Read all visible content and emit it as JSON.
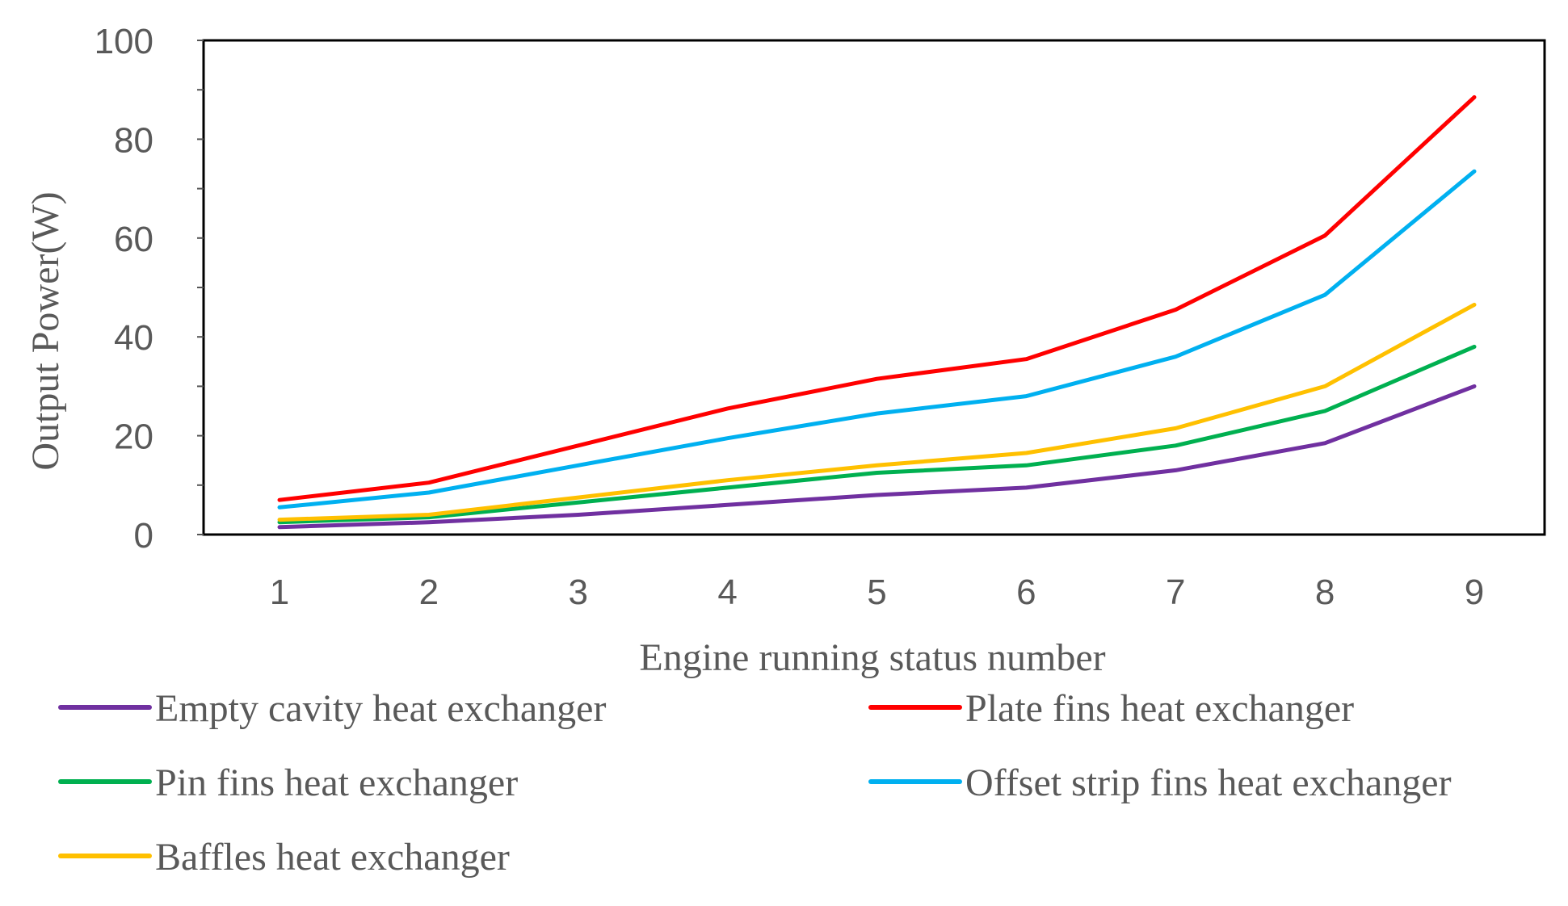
{
  "chart_data": {
    "type": "line",
    "title": "",
    "xlabel": "Engine running status number",
    "ylabel": "Output Power(W)",
    "x": [
      1,
      2,
      3,
      4,
      5,
      6,
      7,
      8,
      9
    ],
    "categories": [
      "1",
      "2",
      "3",
      "4",
      "5",
      "6",
      "7",
      "8",
      "9"
    ],
    "ylim": [
      0,
      100
    ],
    "yticks": [
      0,
      20,
      40,
      60,
      80,
      100
    ],
    "ytick_labels": [
      "0",
      "20",
      "40",
      "60",
      "80",
      "100"
    ],
    "grid": false,
    "legend_position": "bottom",
    "series": [
      {
        "name": "Empty cavity heat exchanger",
        "color": "#7030a0",
        "values": [
          1.5,
          2.5,
          4,
          6,
          8,
          9.5,
          13,
          18.5,
          30
        ]
      },
      {
        "name": "Plate fins heat exchanger",
        "color": "#ff0000",
        "values": [
          7,
          10.5,
          18,
          25.5,
          31.5,
          35.5,
          45.5,
          60.5,
          88.5
        ]
      },
      {
        "name": "Pin fins heat exchanger",
        "color": "#00b050",
        "values": [
          2.5,
          3.5,
          6.5,
          9.5,
          12.5,
          14,
          18,
          25,
          38
        ]
      },
      {
        "name": "Offset strip fins heat exchanger",
        "color": "#00b0f0",
        "values": [
          5.5,
          8.5,
          14,
          19.5,
          24.5,
          28,
          36,
          48.5,
          73.5
        ]
      },
      {
        "name": "Baffles heat exchanger",
        "color": "#ffc000",
        "values": [
          3,
          4,
          7.5,
          11,
          14,
          16.5,
          21.5,
          30,
          46.5
        ]
      }
    ]
  }
}
